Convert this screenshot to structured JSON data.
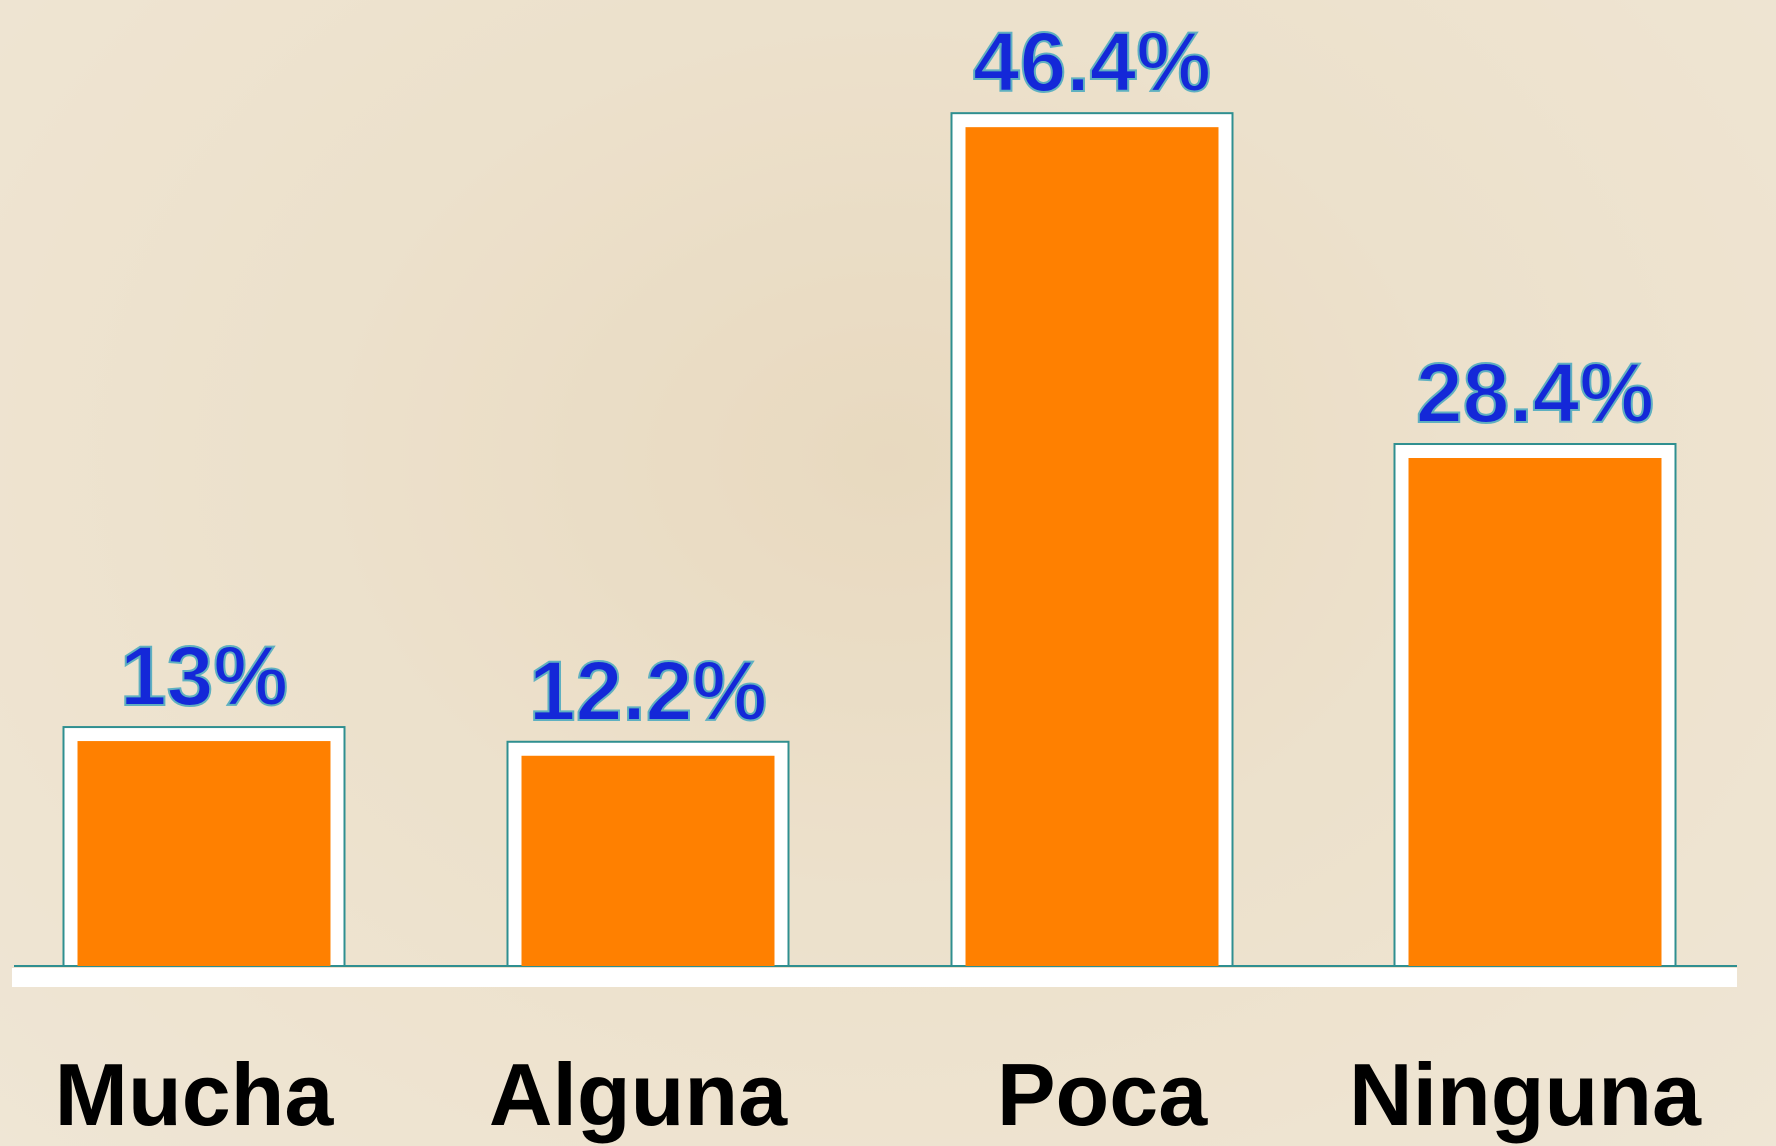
{
  "chart_data": {
    "type": "bar",
    "categories": [
      "Mucha",
      "Alguna",
      "Poca",
      "Ninguna"
    ],
    "values": [
      13,
      12.2,
      46.4,
      28.4
    ],
    "value_labels": [
      "13%",
      "12.2%",
      "46.4%",
      "28.4%"
    ],
    "color": "#ff8000",
    "ylim": [
      0,
      50
    ]
  }
}
